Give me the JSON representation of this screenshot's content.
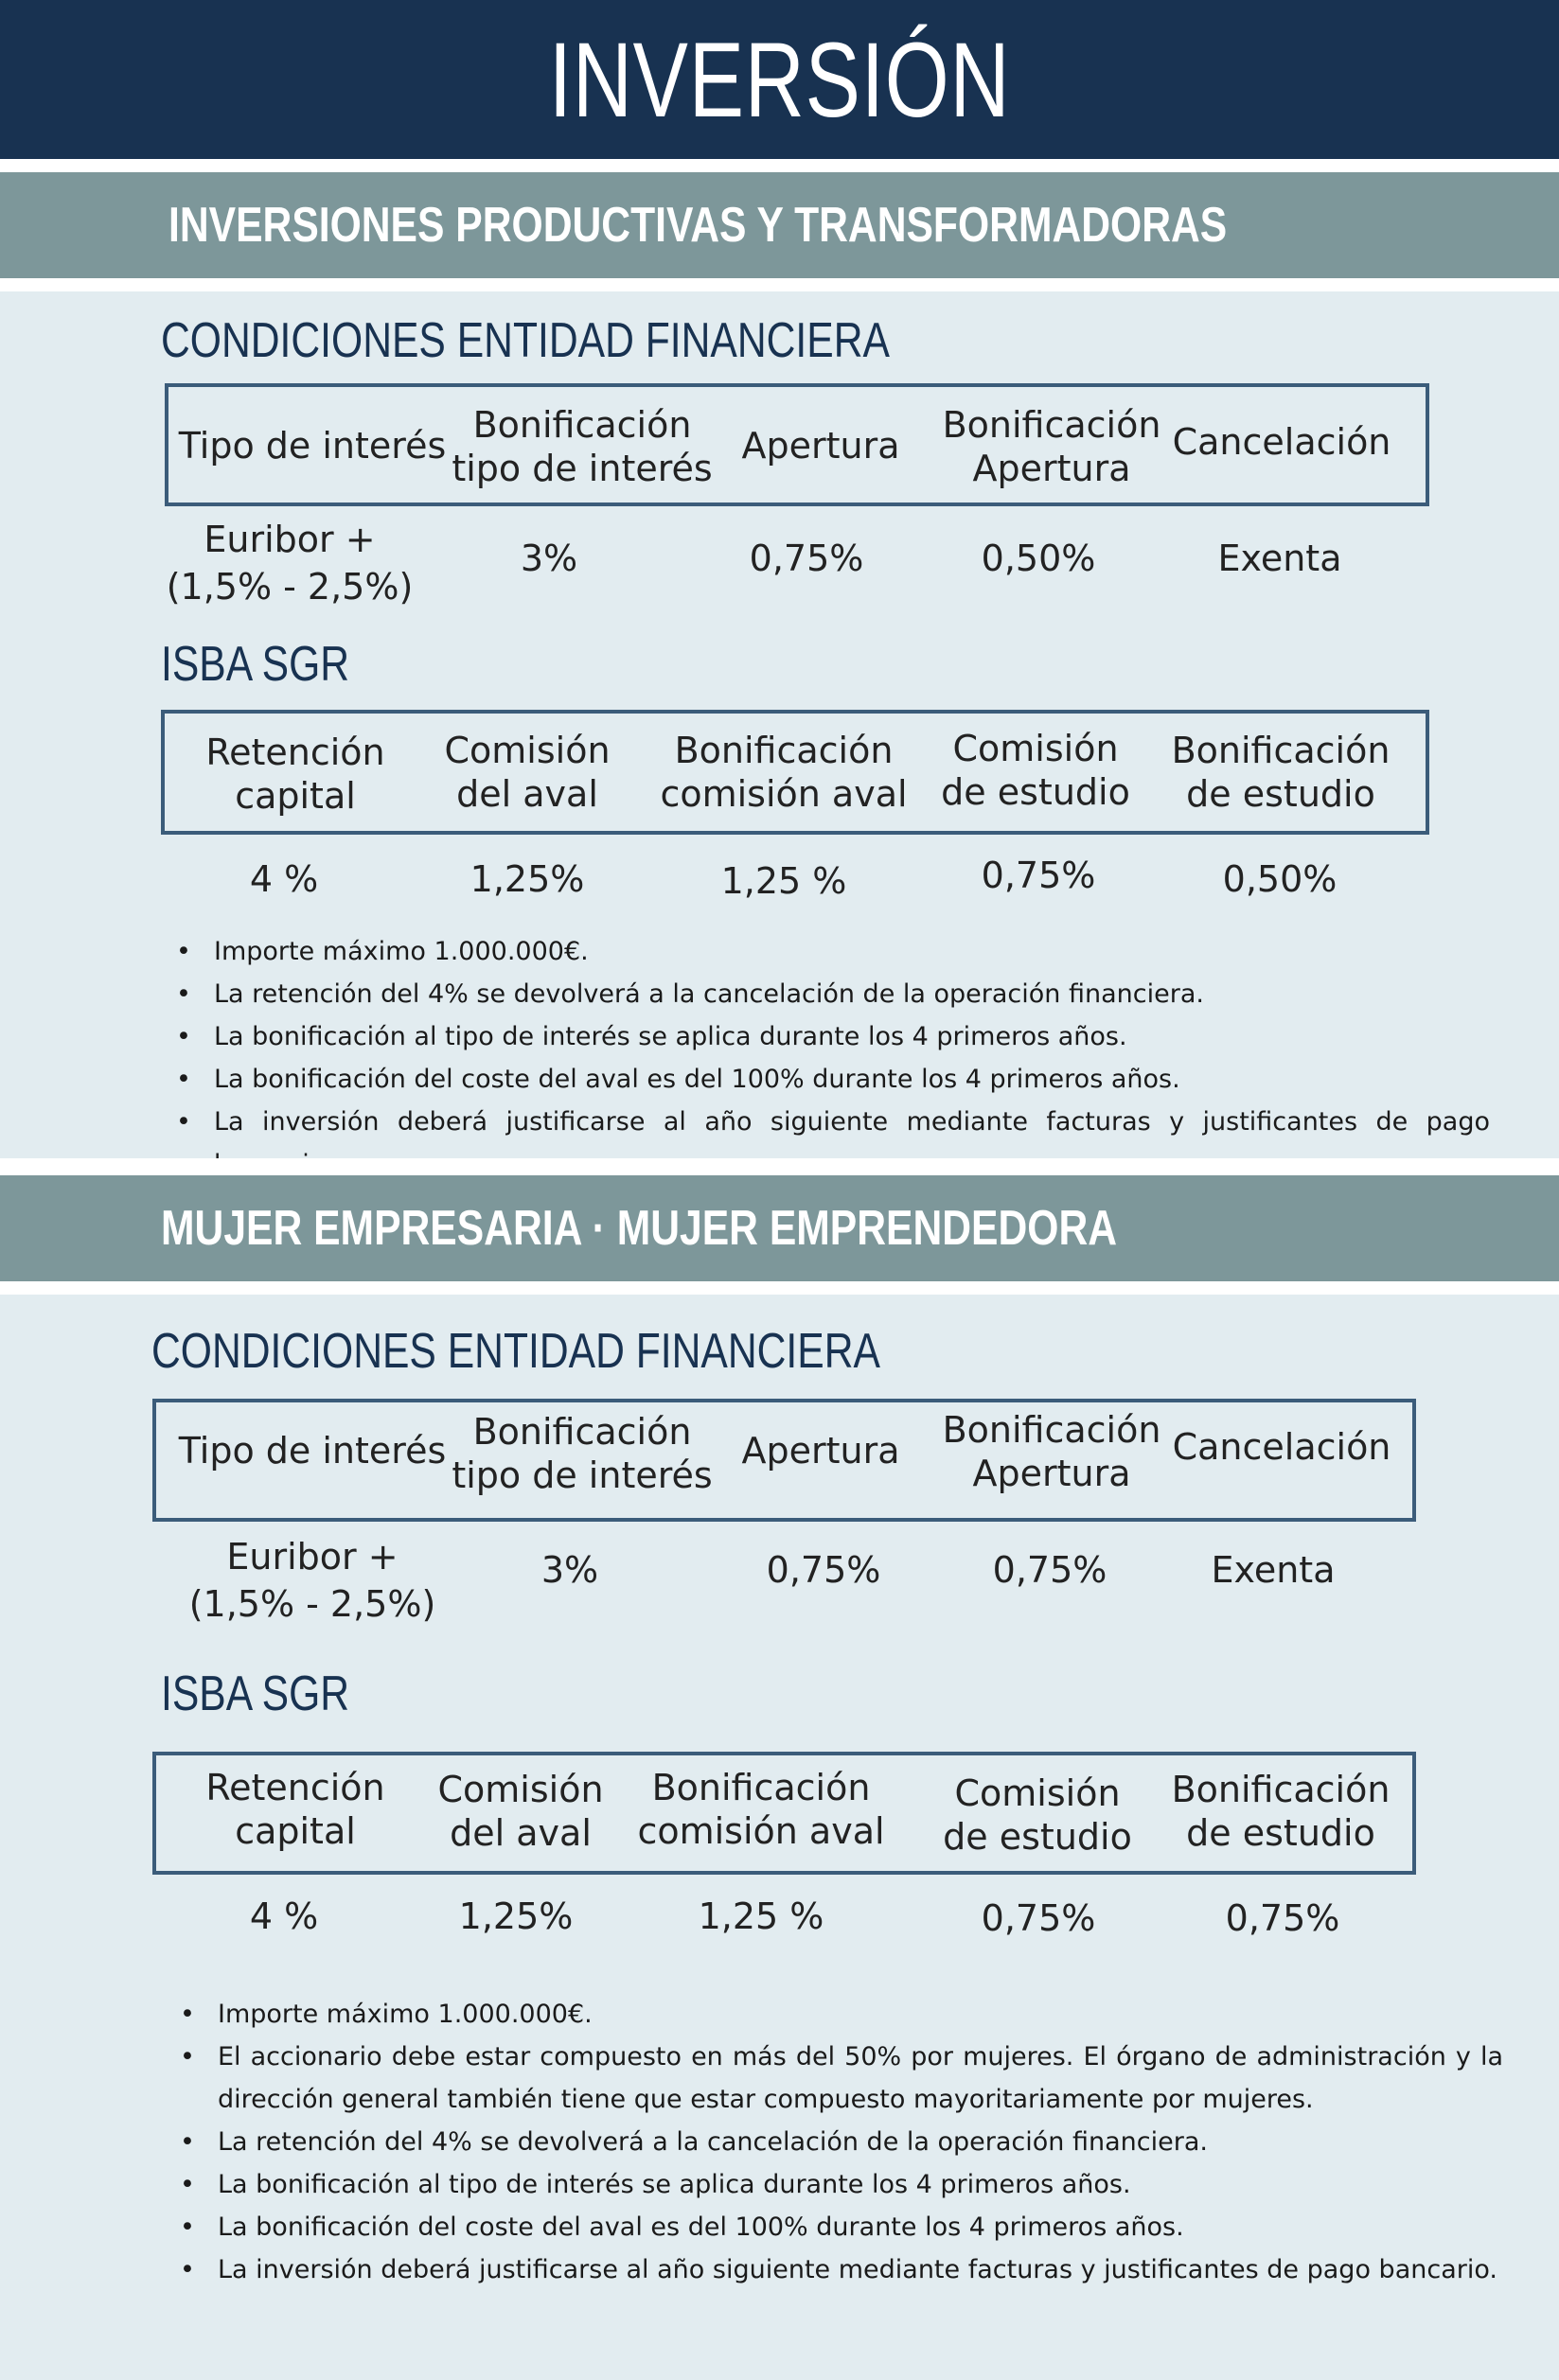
{
  "page_title": "INVERSIÓN",
  "section1": {
    "title": "INVERSIONES PRODUCTIVAS Y TRANSFORMADORAS",
    "bank": {
      "heading": "CONDICIONES ENTIDAD FINANCIERA",
      "headers": [
        "Tipo de interés",
        "Bonificación\ntipo de interés",
        "Apertura",
        "Bonificación\nApertura",
        "Cancelación"
      ],
      "values": [
        "Euribor +\n(1,5% - 2,5%)",
        "3%",
        "0,75%",
        "0,50%",
        "Exenta"
      ]
    },
    "sgr": {
      "heading": "ISBA SGR",
      "headers": [
        "Retención\ncapital",
        "Comisión\ndel aval",
        "Bonificación\ncomisión aval",
        "Comisión\nde estudio",
        "Bonificación\nde estudio"
      ],
      "values": [
        "4 %",
        "1,25%",
        "1,25 %",
        "0,75%",
        "0,50%"
      ]
    },
    "bullets": [
      "Importe máximo 1.000.000€.",
      "La retención del 4% se devolverá a la cancelación de la operación financiera.",
      "La bonificación al tipo de interés se aplica durante los 4 primeros años.",
      "La bonificación del coste del aval es del 100% durante los 4 primeros años.",
      "La inversión deberá justificarse al año siguiente mediante facturas y justificantes de pago bancario."
    ]
  },
  "section2": {
    "title": "MUJER EMPRESARIA · MUJER EMPRENDEDORA",
    "bank": {
      "heading": "CONDICIONES ENTIDAD FINANCIERA",
      "headers": [
        "Tipo de interés",
        "Bonificación\ntipo de interés",
        "Apertura",
        "Bonificación\nApertura",
        "Cancelación"
      ],
      "values": [
        "Euribor +\n(1,5% - 2,5%)",
        "3%",
        "0,75%",
        "0,75%",
        "Exenta"
      ]
    },
    "sgr": {
      "heading": "ISBA SGR",
      "headers": [
        "Retención\ncapital",
        "Comisión\ndel aval",
        "Bonificación\ncomisión aval",
        "Comisión\nde estudio",
        "Bonificación\nde estudio"
      ],
      "values": [
        "4 %",
        "1,25%",
        "1,25 %",
        "0,75%",
        "0,75%"
      ]
    },
    "bullets": [
      "Importe máximo 1.000.000€.",
      "El accionario debe estar compuesto en más del 50% por mujeres. El órgano de administración y la dirección general también tiene que estar compuesto mayoritariamente por mujeres.",
      "La retención del 4% se devolverá a la cancelación de la operación financiera.",
      "La bonificación al tipo de interés se aplica durante los 4 primeros años.",
      "La bonificación del coste del aval es del 100% durante los 4 primeros años.",
      "La inversión deberá justificarse al año siguiente mediante facturas y justificantes de pago bancario."
    ]
  }
}
